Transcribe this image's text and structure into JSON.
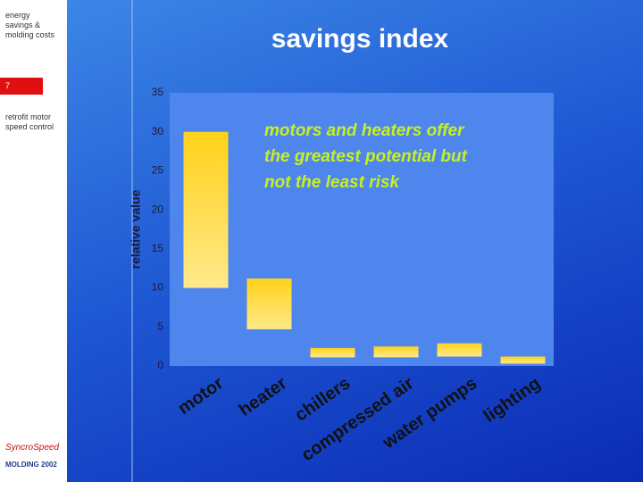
{
  "sidebar": {
    "heading": "energy savings & molding costs",
    "badge": "7",
    "note": "retrofit motor speed control",
    "logo_top": "SyncroSpeed",
    "logo_bottom": "MOLDING 2002"
  },
  "chart_data": {
    "type": "floating-bar",
    "title": "savings index",
    "y_label": "relative value",
    "annotation": "motors and heaters offer the greatest potential but not the least risk",
    "categories": [
      "motor",
      "heater",
      "chillers",
      "compressed air",
      "water pumps",
      "lighting"
    ],
    "low": [
      10,
      4.7,
      1.1,
      1.1,
      1.2,
      0.3
    ],
    "high": [
      30,
      11.2,
      2.3,
      2.5,
      2.9,
      1.2
    ],
    "ylim": [
      0,
      35
    ],
    "yticks": [
      0,
      5,
      10,
      15,
      20,
      25,
      30,
      35
    ]
  }
}
